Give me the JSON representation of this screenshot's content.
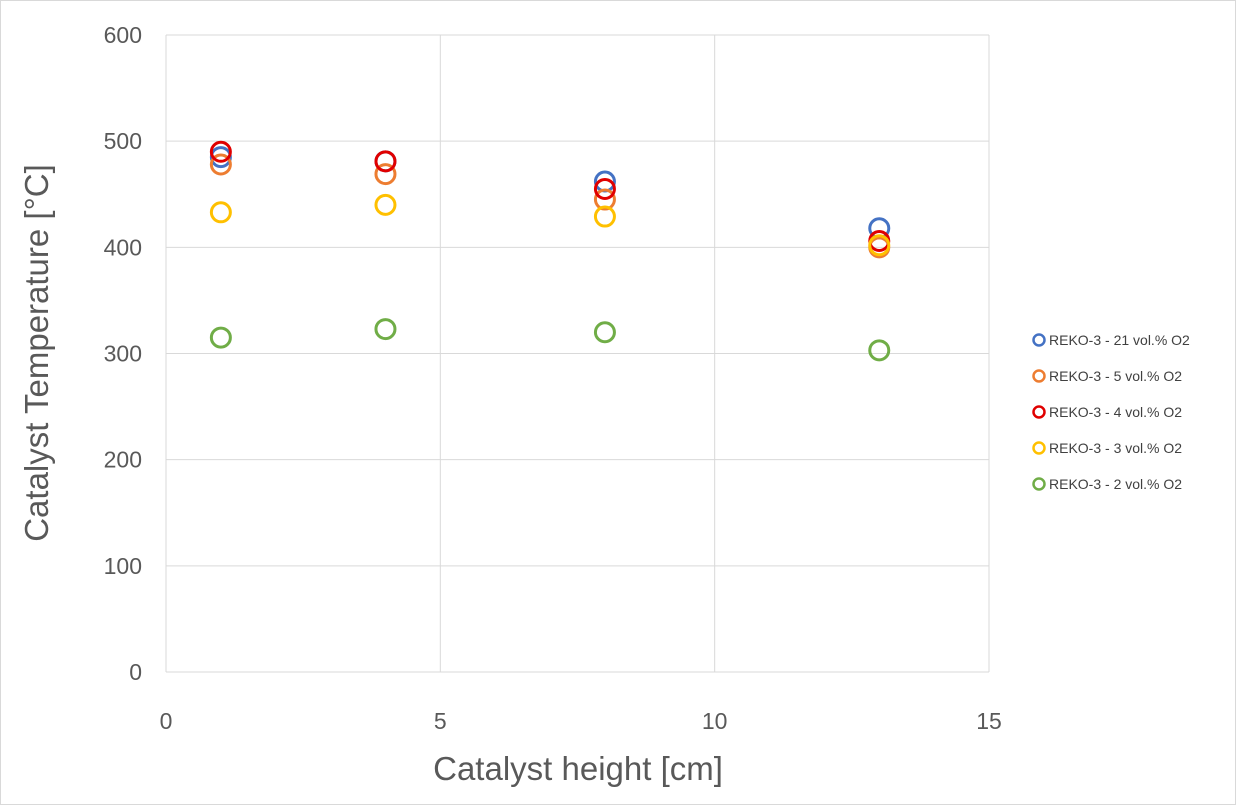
{
  "chart_data": {
    "type": "scatter",
    "title": "",
    "xlabel": "Catalyst height [cm]",
    "ylabel": "Catalyst Temperature [°C]",
    "xlim": [
      0,
      15
    ],
    "ylim": [
      0,
      600
    ],
    "xticks": [
      0,
      5,
      10,
      15
    ],
    "yticks": [
      0,
      100,
      200,
      300,
      400,
      500,
      600
    ],
    "xtick_labels": [
      "0",
      "5",
      "10",
      "15"
    ],
    "ytick_labels": [
      "0",
      "100",
      "200",
      "300",
      "400",
      "500",
      "600"
    ],
    "grid": true,
    "legend_position": "right",
    "marker": "hollow-circle",
    "series": [
      {
        "name": "REKO-3 - 21 vol.% O2",
        "color": "#4472c4",
        "points": [
          [
            1,
            485
          ],
          [
            4,
            481
          ],
          [
            8,
            462
          ],
          [
            13,
            418
          ]
        ]
      },
      {
        "name": "REKO-3 - 5 vol.% O2",
        "color": "#ed7d31",
        "points": [
          [
            1,
            478
          ],
          [
            4,
            469
          ],
          [
            8,
            445
          ],
          [
            13,
            400
          ]
        ]
      },
      {
        "name": "REKO-3 - 4 vol.% O2",
        "color": "#e00000",
        "points": [
          [
            1,
            490
          ],
          [
            4,
            481
          ],
          [
            8,
            455
          ],
          [
            13,
            406
          ]
        ]
      },
      {
        "name": "REKO-3 - 3 vol.% O2",
        "color": "#ffc000",
        "points": [
          [
            1,
            433
          ],
          [
            4,
            440
          ],
          [
            8,
            429
          ],
          [
            13,
            402
          ]
        ]
      },
      {
        "name": "REKO-3 - 2 vol.% O2",
        "color": "#70ad47",
        "points": [
          [
            1,
            315
          ],
          [
            4,
            323
          ],
          [
            8,
            320
          ],
          [
            13,
            303
          ]
        ]
      }
    ]
  }
}
